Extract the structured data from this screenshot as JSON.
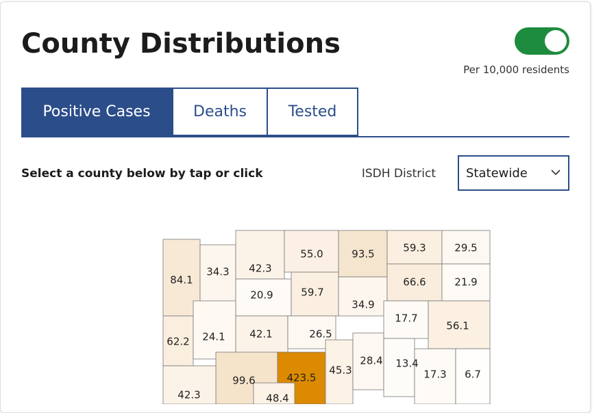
{
  "header": {
    "title": "County Distributions",
    "toggle_label": "Per 10,000 residents"
  },
  "tabs": [
    "Positive Cases",
    "Deaths",
    "Tested"
  ],
  "filter": {
    "instruction": "Select a county below by tap or click",
    "district_label": "ISDH District",
    "district_value": "Statewide"
  },
  "map": {
    "counties": [
      {
        "label": "84.1",
        "fill": "#f8e9d6"
      },
      {
        "label": "34.3",
        "fill": "#fdf6ee"
      },
      {
        "label": "42.3",
        "fill": "#fcf3e8"
      },
      {
        "label": "20.9",
        "fill": "#fefaf5"
      },
      {
        "label": "55.0",
        "fill": "#fbf0e3"
      },
      {
        "label": "59.7",
        "fill": "#fbefe1"
      },
      {
        "label": "93.5",
        "fill": "#f6e5ce"
      },
      {
        "label": "34.9",
        "fill": "#fdf6ee"
      },
      {
        "label": "59.3",
        "fill": "#fbefe1"
      },
      {
        "label": "29.5",
        "fill": "#fdf8f1"
      },
      {
        "label": "66.6",
        "fill": "#faeddd"
      },
      {
        "label": "21.9",
        "fill": "#fefaf5"
      },
      {
        "label": "17.7",
        "fill": "#fefbf7"
      },
      {
        "label": "56.1",
        "fill": "#fbf0e2"
      },
      {
        "label": "62.2",
        "fill": "#faeedf"
      },
      {
        "label": "24.1",
        "fill": "#fef9f3"
      },
      {
        "label": "42.1",
        "fill": "#fcf3e8"
      },
      {
        "label": "26.5",
        "fill": "#fdf8f2"
      },
      {
        "label": "99.6",
        "fill": "#f5e3ca"
      },
      {
        "label": "423.5",
        "fill": "#dc8a00"
      },
      {
        "label": "45.3",
        "fill": "#fcf2e6"
      },
      {
        "label": "28.4",
        "fill": "#fdf8f1"
      },
      {
        "label": "13.4",
        "fill": "#fefcf9"
      },
      {
        "label": "17.3",
        "fill": "#fefbf7"
      },
      {
        "label": "6.7",
        "fill": "#fffefc"
      },
      {
        "label": "42.3",
        "fill": "#fcf3e8"
      },
      {
        "label": "48.4",
        "fill": "#fcf2e6"
      }
    ]
  }
}
